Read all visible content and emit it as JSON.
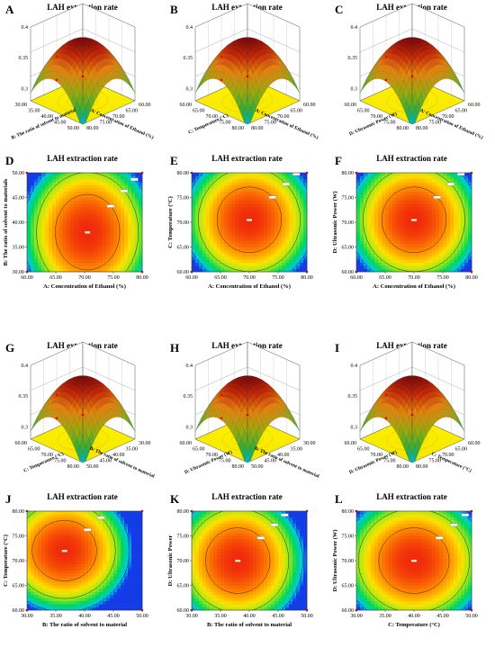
{
  "figure": {
    "panels": [
      {
        "letter": "A",
        "type": "surface",
        "title": "LAH extraction rate",
        "xlabel": "A: Concentration of Ethanol (%)",
        "xticks": [
          "60.00",
          "65.00",
          "70.00",
          "75.00",
          "80.00"
        ],
        "ylabel": "B: The ratio of solvent to material",
        "yticks": [
          "30.00",
          "35.00",
          "40.00",
          "45.00",
          "50.00"
        ],
        "zticks": [
          "0.3",
          "0.35",
          "0.4"
        ],
        "surface_z_range": [
          0.28,
          0.38
        ]
      },
      {
        "letter": "B",
        "type": "surface",
        "title": "LAH extraction rate",
        "xlabel": "A: Concentration of Ethanol (%)",
        "xticks": [
          "60.00",
          "65.00",
          "70.00",
          "75.00",
          "80.00"
        ],
        "ylabel": "C: Temperature (°C)",
        "yticks": [
          "60.00",
          "65.00",
          "70.00",
          "75.00",
          "80.00"
        ],
        "zticks": [
          "0.3",
          "0.35",
          "0.4"
        ],
        "surface_z_range": [
          0.28,
          0.38
        ]
      },
      {
        "letter": "C",
        "type": "surface",
        "title": "LAH extraction rate",
        "xlabel": "A: Concentration of Ethanol (%)",
        "xticks": [
          "60.00",
          "65.00",
          "70.00",
          "75.00",
          "80.00"
        ],
        "ylabel": "D: Ultrasonic Power (W)",
        "yticks": [
          "60.00",
          "65.00",
          "70.00",
          "75.00",
          "80.00"
        ],
        "zticks": [
          "0.3",
          "0.35",
          "0.4"
        ],
        "surface_z_range": [
          0.28,
          0.38
        ]
      },
      {
        "letter": "D",
        "type": "contour",
        "title": "LAH extraction rate",
        "xlabel": "A: Concentration of Ethanol (%)",
        "xticks": [
          "60.00",
          "65.00",
          "70.00",
          "75.00",
          "80.00"
        ],
        "ylabel": "B: The ratio of solvent to materials",
        "yticks": [
          "30.00",
          "35.00",
          "40.00",
          "45.00",
          "50.00"
        ],
        "optimum": [
          70.5,
          38.0
        ],
        "spread": [
          0.55,
          0.75
        ]
      },
      {
        "letter": "E",
        "type": "contour",
        "title": "LAH extraction rate",
        "xlabel": "A: Concentration of Ethanol (%)",
        "xticks": [
          "60.00",
          "65.00",
          "70.00",
          "75.00",
          "80.00"
        ],
        "ylabel": "C: Temperature (°C)",
        "yticks": [
          "60.00",
          "65.00",
          "70.00",
          "75.00",
          "80.00"
        ],
        "optimum": [
          70.0,
          70.5
        ],
        "spread": [
          0.55,
          0.65
        ]
      },
      {
        "letter": "F",
        "type": "contour",
        "title": "LAH extraction rate",
        "xlabel": "A: Concentration of Ethanol (%)",
        "xticks": [
          "60.00",
          "65.00",
          "70.00",
          "75.00",
          "80.00"
        ],
        "ylabel": "D: Ultrasonic Power (W)",
        "yticks": [
          "60.00",
          "65.00",
          "70.00",
          "75.00",
          "80.00"
        ],
        "optimum": [
          70.0,
          70.5
        ],
        "spread": [
          0.55,
          0.65
        ]
      },
      {
        "letter": "G",
        "type": "surface",
        "title": "LAH extraction rate",
        "xlabel": "B: The ratio of solvent to material",
        "xticks": [
          "30.00",
          "35.00",
          "40.00",
          "45.00",
          "50.00"
        ],
        "ylabel": "C: Temperature (°C)",
        "yticks": [
          "60.00",
          "65.00",
          "70.00",
          "75.00",
          "80.00"
        ],
        "zticks": [
          "0.3",
          "0.35",
          "0.4"
        ],
        "surface_z_range": [
          0.28,
          0.38
        ]
      },
      {
        "letter": "H",
        "type": "surface",
        "title": "LAH extraction rate",
        "xlabel": "B: The ratio of solvent to material",
        "xticks": [
          "30.00",
          "35.00",
          "40.00",
          "45.00",
          "50.00"
        ],
        "ylabel": "D: Ultrasonic Power (W)",
        "yticks": [
          "60.00",
          "65.00",
          "70.00",
          "75.00",
          "80.00"
        ],
        "zticks": [
          "0.3",
          "0.35",
          "0.4"
        ],
        "surface_z_range": [
          0.28,
          0.38
        ]
      },
      {
        "letter": "I",
        "type": "surface",
        "title": "LAH extraction rate",
        "xlabel": "C: Temperature (°C)",
        "xticks": [
          "60.00",
          "65.00",
          "70.00",
          "75.00",
          "80.00"
        ],
        "ylabel": "D: Ultrasonic Power (W)",
        "yticks": [
          "60.00",
          "65.00",
          "70.00",
          "75.00",
          "80.00"
        ],
        "zticks": [
          "0.3",
          "0.35",
          "0.4"
        ],
        "surface_z_range": [
          0.28,
          0.38
        ]
      },
      {
        "letter": "J",
        "type": "contour",
        "title": "LAH extraction rate",
        "xlabel": "B: The ratio of solvent to material",
        "xticks": [
          "30.00",
          "35.00",
          "40.00",
          "45.00",
          "50.00"
        ],
        "ylabel": "C: Temperature (°C)",
        "yticks": [
          "60.00",
          "65.00",
          "70.00",
          "75.00",
          "80.00"
        ],
        "optimum": [
          36.5,
          72.0
        ],
        "spread": [
          0.55,
          0.6
        ]
      },
      {
        "letter": "K",
        "type": "contour",
        "title": "LAH extraction rate",
        "xlabel": "B: The ratio of solvent to material",
        "xticks": [
          "30.00",
          "35.00",
          "40.00",
          "45.00",
          "50.00"
        ],
        "ylabel": "D: Ultrasonic Power",
        "yticks": [
          "60.00",
          "65.00",
          "70.00",
          "75.00",
          "80.00"
        ],
        "optimum": [
          38.0,
          70.0
        ],
        "spread": [
          0.55,
          0.65
        ]
      },
      {
        "letter": "L",
        "type": "contour",
        "title": "LAH extraction rate",
        "xlabel": "C: Temperature (°C)",
        "xticks": [
          "30.00",
          "35.00",
          "40.00",
          "45.00",
          "50.00"
        ],
        "ylabel": "D: Ultrasonic Power (W)",
        "yticks": [
          "60.00",
          "65.00",
          "70.00",
          "75.00",
          "80.00"
        ],
        "optimum": [
          40.0,
          70.0
        ],
        "spread": [
          0.6,
          0.65
        ]
      }
    ]
  },
  "chart_data": [
    {
      "panel": "A",
      "type": "surface",
      "title": "LAH extraction rate",
      "xlabel": "A: Concentration of Ethanol (%)",
      "ylabel": "B: The ratio of solvent to material",
      "xlim": [
        60,
        80
      ],
      "ylim": [
        30,
        50
      ],
      "zlim": [
        0.28,
        0.4
      ]
    },
    {
      "panel": "B",
      "type": "surface",
      "title": "LAH extraction rate",
      "xlabel": "A: Concentration of Ethanol (%)",
      "ylabel": "C: Temperature (°C)",
      "xlim": [
        60,
        80
      ],
      "ylim": [
        60,
        80
      ],
      "zlim": [
        0.28,
        0.4
      ]
    },
    {
      "panel": "C",
      "type": "surface",
      "title": "LAH extraction rate",
      "xlabel": "A: Concentration of Ethanol (%)",
      "ylabel": "D: Ultrasonic Power (W)",
      "xlim": [
        60,
        80
      ],
      "ylim": [
        60,
        80
      ],
      "zlim": [
        0.28,
        0.4
      ]
    },
    {
      "panel": "D",
      "type": "heatmap",
      "title": "LAH extraction rate",
      "xlabel": "A: Concentration of Ethanol (%)",
      "ylabel": "B: The ratio of solvent to materials",
      "xlim": [
        60,
        80
      ],
      "ylim": [
        30,
        50
      ]
    },
    {
      "panel": "E",
      "type": "heatmap",
      "title": "LAH extraction rate",
      "xlabel": "A: Concentration of Ethanol (%)",
      "ylabel": "C: Temperature (°C)",
      "xlim": [
        60,
        80
      ],
      "ylim": [
        60,
        80
      ]
    },
    {
      "panel": "F",
      "type": "heatmap",
      "title": "LAH extraction rate",
      "xlabel": "A: Concentration of Ethanol (%)",
      "ylabel": "D: Ultrasonic Power (W)",
      "xlim": [
        60,
        80
      ],
      "ylim": [
        60,
        80
      ]
    },
    {
      "panel": "G",
      "type": "surface",
      "title": "LAH extraction rate",
      "xlabel": "B: The ratio of solvent to material",
      "ylabel": "C: Temperature (°C)",
      "xlim": [
        30,
        50
      ],
      "ylim": [
        60,
        80
      ],
      "zlim": [
        0.28,
        0.4
      ]
    },
    {
      "panel": "H",
      "type": "surface",
      "title": "LAH extraction rate",
      "xlabel": "B: The ratio of solvent to material",
      "ylabel": "D: Ultrasonic Power (W)",
      "xlim": [
        30,
        50
      ],
      "ylim": [
        60,
        80
      ],
      "zlim": [
        0.28,
        0.4
      ]
    },
    {
      "panel": "I",
      "type": "surface",
      "title": "LAH extraction rate",
      "xlabel": "C: Temperature (°C)",
      "ylabel": "D: Ultrasonic Power (W)",
      "xlim": [
        60,
        80
      ],
      "ylim": [
        60,
        80
      ],
      "zlim": [
        0.28,
        0.4
      ]
    },
    {
      "panel": "J",
      "type": "heatmap",
      "title": "LAH extraction rate",
      "xlabel": "B: The ratio of solvent to material",
      "ylabel": "C: Temperature (°C)",
      "xlim": [
        30,
        50
      ],
      "ylim": [
        60,
        80
      ]
    },
    {
      "panel": "K",
      "type": "heatmap",
      "title": "LAH extraction rate",
      "xlabel": "B: The ratio of solvent to material",
      "ylabel": "D: Ultrasonic Power",
      "xlim": [
        30,
        50
      ],
      "ylim": [
        60,
        80
      ]
    },
    {
      "panel": "L",
      "type": "heatmap",
      "title": "LAH extraction rate",
      "xlabel": "C: Temperature (°C)",
      "ylabel": "D: Ultrasonic Power (W)",
      "xlim": [
        30,
        50
      ],
      "ylim": [
        60,
        80
      ]
    }
  ]
}
